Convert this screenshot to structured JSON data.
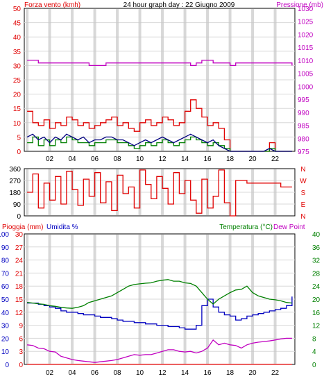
{
  "title": "24 hour graph day : 22 Giugno 2009",
  "colors": {
    "wind": "#e00000",
    "wind_avg": "#000080",
    "wind_gust": "#008000",
    "pressure": "#c000c0",
    "direction": "#e00000",
    "rain": "#e00000",
    "humidity": "#0000c0",
    "temperature": "#008000",
    "dew_point": "#c000c0",
    "grid": "#d8d8d8",
    "hour_band": "#c8c8c8"
  },
  "chart_data": [
    {
      "type": "line",
      "name": "wind-pressure",
      "ylabel_left": "Forza vento (kmh)",
      "ylabel_right": "Pressione (mb)",
      "ylim_left": [
        0,
        50
      ],
      "ylim_right": [
        975,
        1030
      ],
      "yticks_left": [
        "0",
        "5",
        "10",
        "15",
        "20",
        "25",
        "30",
        "35",
        "40",
        "45",
        "50"
      ],
      "yticks_right": [
        "975",
        "980",
        "985",
        "990",
        "995",
        "1000",
        "1005",
        "1010",
        "1015",
        "1020",
        "1025",
        "1030"
      ],
      "x_tick_labels": [
        "02",
        "04",
        "06",
        "08",
        "10",
        "12",
        "14",
        "16",
        "18",
        "20",
        "22"
      ],
      "x": [
        0,
        0.5,
        1,
        1.5,
        2,
        2.5,
        3,
        3.5,
        4,
        4.5,
        5,
        5.5,
        6,
        6.5,
        7,
        7.5,
        8,
        8.5,
        9,
        9.5,
        10,
        10.5,
        11,
        11.5,
        12,
        12.5,
        13,
        13.5,
        14,
        14.5,
        15,
        15.5,
        16,
        16.5,
        17,
        17.5,
        18,
        18.5,
        19,
        19.5,
        20,
        20.5,
        21,
        21.5,
        22,
        22.5,
        23,
        23.5
      ],
      "series": [
        {
          "name": "wind",
          "values": [
            14,
            10,
            9,
            11,
            8,
            10,
            9,
            12,
            11,
            9,
            10,
            8,
            9,
            10,
            11,
            12,
            9,
            10,
            8,
            7,
            10,
            11,
            9,
            10,
            12,
            11,
            9,
            10,
            14,
            18,
            15,
            12,
            9,
            10,
            8,
            4,
            0,
            0,
            0,
            0,
            0,
            0,
            0,
            3,
            0,
            0,
            0,
            0
          ]
        },
        {
          "name": "wind_avg",
          "values": [
            5,
            6,
            4,
            5,
            3,
            5,
            4,
            6,
            5,
            4,
            5,
            3,
            4,
            4,
            5,
            5,
            4,
            4,
            3,
            2,
            3,
            4,
            3,
            4,
            5,
            4,
            3,
            4,
            5,
            6,
            5,
            4,
            3,
            4,
            2,
            1,
            0,
            0,
            0,
            0,
            0,
            0,
            0,
            1,
            0,
            0,
            0,
            0
          ]
        },
        {
          "name": "wind_gust",
          "values": [
            3,
            5,
            2,
            4,
            2,
            4,
            3,
            5,
            4,
            3,
            3,
            2,
            3,
            3,
            4,
            4,
            3,
            3,
            2,
            1,
            2,
            3,
            2,
            3,
            4,
            3,
            2,
            3,
            4,
            5,
            4,
            3,
            2,
            3,
            2,
            1,
            0,
            0,
            0,
            0,
            0,
            0,
            0,
            1,
            0,
            0,
            0,
            0
          ]
        },
        {
          "name": "pressure",
          "values": [
            1010,
            1010,
            1009,
            1009,
            1009,
            1009,
            1009,
            1009,
            1009,
            1009,
            1009,
            1008,
            1008,
            1008,
            1009,
            1009,
            1009,
            1009,
            1009,
            1009,
            1009,
            1009,
            1009,
            1009,
            1009,
            1009,
            1009,
            1009,
            1009,
            1008,
            1009,
            1010,
            1010,
            1009,
            1009,
            1009,
            1008,
            1009,
            1009,
            1009,
            1009,
            1009,
            1009,
            1009,
            1009,
            1009,
            1009,
            1008
          ]
        }
      ]
    },
    {
      "type": "line",
      "name": "wind-direction",
      "yticks_left": [
        "0",
        "90",
        "180",
        "270",
        "360"
      ],
      "yticks_right": [
        "N",
        "E",
        "S",
        "W",
        "N"
      ],
      "ylim": [
        0,
        360
      ],
      "x": [
        0,
        0.5,
        1,
        1.5,
        2,
        2.5,
        3,
        3.5,
        4,
        4.5,
        5,
        5.5,
        6,
        6.5,
        7,
        7.5,
        8,
        8.5,
        9,
        9.5,
        10,
        10.5,
        11,
        11.5,
        12,
        12.5,
        13,
        13.5,
        14,
        14.5,
        15,
        15.5,
        16,
        16.5,
        17,
        17.5,
        18,
        18.5,
        19,
        19.5,
        20,
        20.5,
        21,
        21.5,
        22,
        22.5,
        23,
        23.5
      ],
      "series": [
        {
          "name": "direction",
          "values": [
            180,
            320,
            60,
            250,
            120,
            300,
            90,
            340,
            200,
            80,
            280,
            150,
            330,
            100,
            260,
            40,
            310,
            170,
            220,
            60,
            350,
            240,
            130,
            300,
            210,
            90,
            330,
            170,
            270,
            120,
            20,
            280,
            60,
            150,
            350,
            100,
            0,
            270,
            270,
            250,
            250,
            250,
            250,
            250,
            250,
            220,
            220,
            220
          ]
        }
      ]
    },
    {
      "type": "line",
      "name": "rain-humidity-temperature",
      "ylabel_left_1": "Pioggia (mm)",
      "ylabel_left_2": "Umidita %",
      "ylabel_right_1": "Temperatura (°C)",
      "ylabel_right_2": "Dew Point",
      "ylim_humidity": [
        0,
        100
      ],
      "ylim_rain": [
        0,
        30
      ],
      "ylim_temperature": [
        0,
        40
      ],
      "yticks_humidity": [
        "0",
        "10",
        "20",
        "30",
        "40",
        "50",
        "60",
        "70",
        "80",
        "90",
        "100"
      ],
      "yticks_rain": [
        "0",
        "3",
        "6",
        "9",
        "12",
        "15",
        "18",
        "21",
        "24",
        "27",
        "30"
      ],
      "yticks_temperature": [
        "0",
        "4",
        "8",
        "12",
        "16",
        "20",
        "24",
        "28",
        "32",
        "36",
        "40"
      ],
      "x": [
        0,
        0.5,
        1,
        1.5,
        2,
        2.5,
        3,
        3.5,
        4,
        4.5,
        5,
        5.5,
        6,
        6.5,
        7,
        7.5,
        8,
        8.5,
        9,
        9.5,
        10,
        10.5,
        11,
        11.5,
        12,
        12.5,
        13,
        13.5,
        14,
        14.5,
        15,
        15.5,
        16,
        16.5,
        17,
        17.5,
        18,
        18.5,
        19,
        19.5,
        20,
        20.5,
        21,
        21.5,
        22,
        22.5,
        23,
        23.5
      ],
      "series": [
        {
          "name": "rain",
          "values": [
            0,
            0,
            0,
            0,
            0,
            0,
            0,
            0,
            0,
            0,
            0,
            0,
            0,
            0,
            0,
            0,
            0,
            0,
            0,
            0,
            0,
            0,
            0,
            0,
            0,
            0,
            0,
            0,
            0,
            0,
            0,
            0,
            0,
            0,
            0,
            0,
            0,
            0,
            0,
            0,
            0,
            0,
            0,
            0,
            0,
            0,
            0,
            0
          ]
        },
        {
          "name": "humidity",
          "values": [
            47,
            47,
            46,
            45,
            44,
            43,
            41,
            40,
            40,
            39,
            38,
            38,
            37,
            36,
            36,
            35,
            34,
            33,
            33,
            32,
            32,
            31,
            31,
            30,
            30,
            29,
            29,
            28,
            27,
            27,
            30,
            45,
            50,
            44,
            40,
            38,
            37,
            34,
            35,
            37,
            38,
            39,
            40,
            41,
            42,
            43,
            45,
            52
          ]
        },
        {
          "name": "temperature",
          "values": [
            19,
            18.8,
            18.6,
            18.4,
            18,
            17.8,
            17.5,
            17.3,
            17.2,
            17.5,
            18,
            19,
            19.5,
            20,
            20.5,
            21,
            22,
            23,
            24,
            24.5,
            24.7,
            24.9,
            25,
            25.5,
            25.8,
            26,
            25.5,
            25.5,
            25,
            24.8,
            24,
            22,
            20,
            18.5,
            20,
            21,
            22,
            22.8,
            23,
            24,
            22,
            21,
            20.5,
            20,
            19.8,
            19.5,
            19,
            18.8
          ]
        },
        {
          "name": "dew_point",
          "values": [
            6,
            5.8,
            5,
            4.8,
            4,
            3.8,
            2.5,
            2,
            1.5,
            1.2,
            1,
            0.8,
            0.6,
            0.8,
            1,
            1.2,
            1.5,
            2,
            2.5,
            3,
            2.8,
            3,
            3,
            3.5,
            4,
            4.5,
            4.5,
            4,
            3.8,
            4,
            3.5,
            4,
            5,
            7.5,
            6,
            6.5,
            6,
            5.8,
            5,
            6,
            6.5,
            6.8,
            7,
            7.2,
            7.5,
            7.8,
            8,
            8
          ]
        }
      ]
    }
  ]
}
